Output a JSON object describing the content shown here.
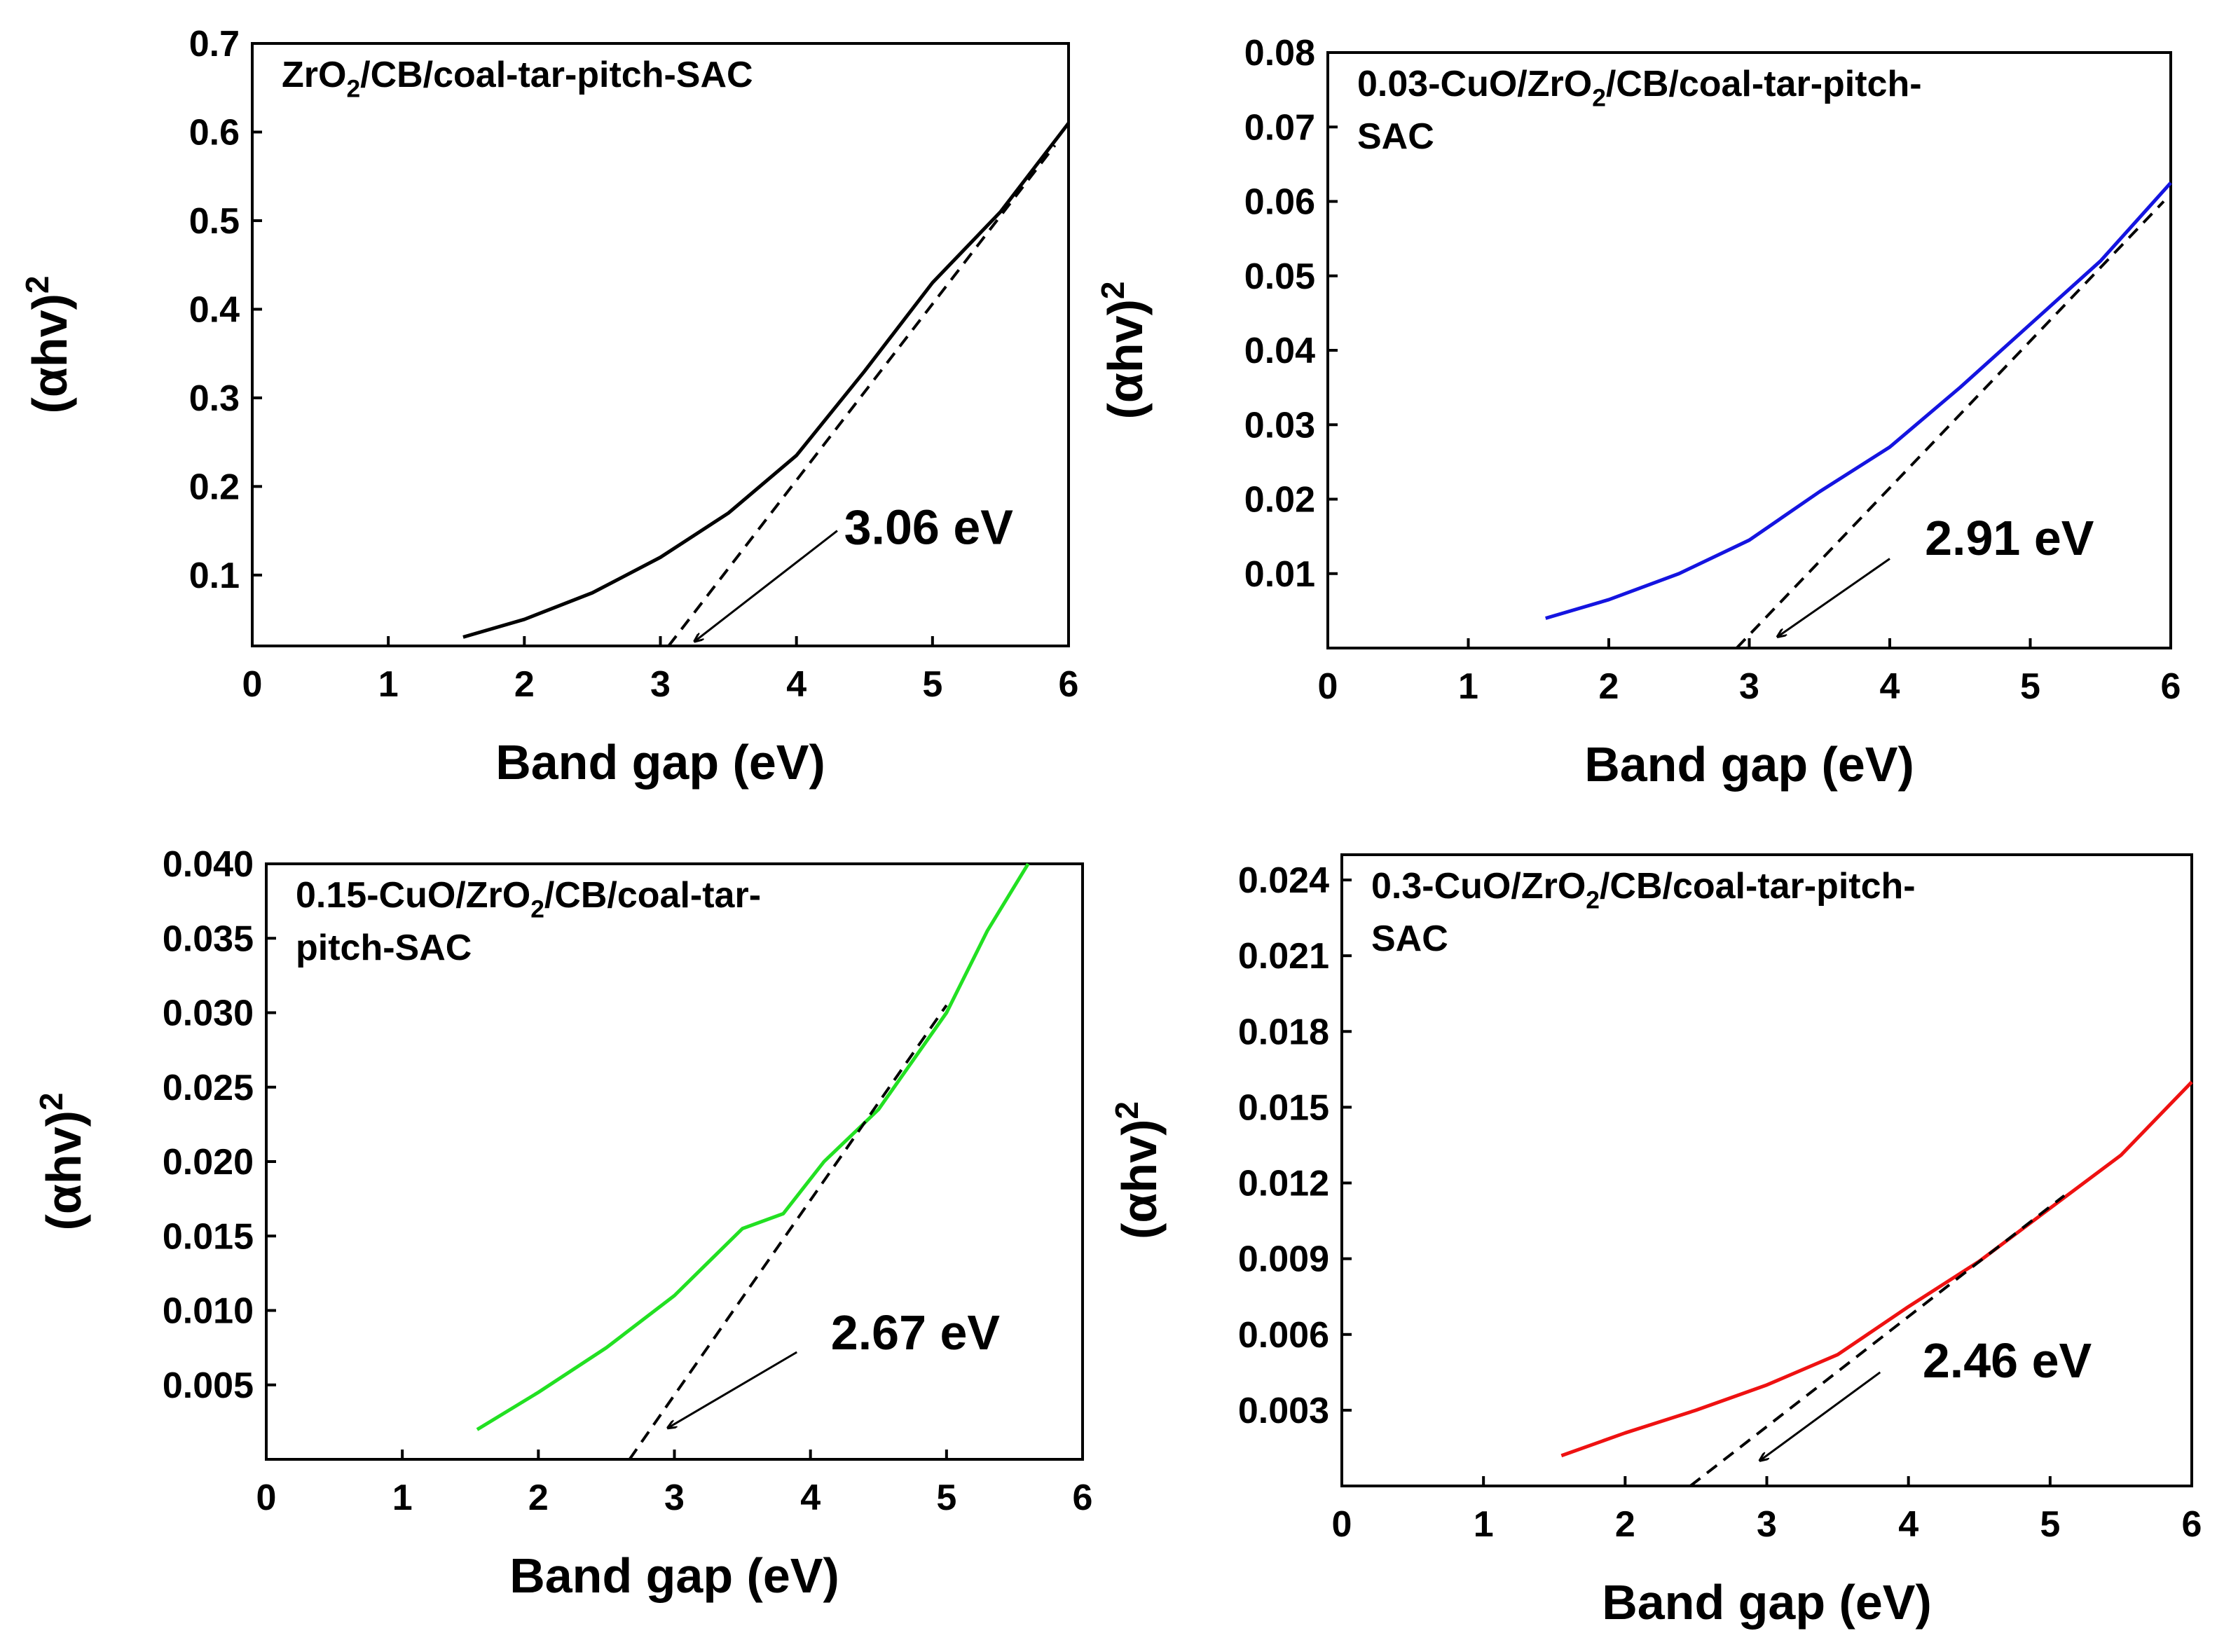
{
  "chart_data": [
    {
      "type": "line",
      "id": "zro2",
      "title": "ZrO2/CB/coal-tar-pitch-SAC",
      "title_parts": [
        {
          "t": "ZrO"
        },
        {
          "t": "2",
          "sub": true
        },
        {
          "t": "/CB/coal-tar-pitch-SAC"
        }
      ],
      "xlabel": "Band gap (eV)",
      "ylabel": "(αhv)",
      "ylabel_sup": "2",
      "xlim": [
        0,
        6
      ],
      "ylim": [
        0.02,
        0.7
      ],
      "xticks": [
        "0",
        "1",
        "2",
        "3",
        "4",
        "5",
        "6"
      ],
      "yticks": [
        "0.1",
        "0.2",
        "0.3",
        "0.4",
        "0.5",
        "0.6",
        "0.7"
      ],
      "series": [
        {
          "name": "ZrO2/CB/coal-tar-pitch-SAC",
          "color": "#000000",
          "x": [
            1.55,
            2.0,
            2.5,
            3.0,
            3.5,
            4.0,
            4.5,
            5.0,
            5.5,
            6.0
          ],
          "y": [
            0.03,
            0.05,
            0.08,
            0.12,
            0.17,
            0.235,
            0.33,
            0.43,
            0.51,
            0.61
          ]
        }
      ],
      "fit_line": {
        "x": [
          3.06,
          5.9
        ],
        "y": [
          0.02,
          0.585
        ]
      },
      "band_gap_label": "3.06 eV",
      "arrow": {
        "from": [
          4.3,
          0.15
        ],
        "to": [
          3.25,
          0.025
        ]
      },
      "label_pos": {
        "x": 4.35,
        "y": 0.135
      }
    },
    {
      "type": "line",
      "id": "cuo003",
      "title": "0.03-CuO/ZrO2/CB/coal-tar-pitch-SAC",
      "title_lines": [
        [
          {
            "t": "0.03-CuO/ZrO"
          },
          {
            "t": "2",
            "sub": true
          },
          {
            "t": "/CB/coal-tar-pitch-"
          }
        ],
        [
          {
            "t": "SAC"
          }
        ]
      ],
      "xlabel": "Band gap (eV)",
      "ylabel": "(αhv)",
      "ylabel_sup": "2",
      "xlim": [
        0,
        6
      ],
      "ylim": [
        0,
        0.08
      ],
      "xticks": [
        "0",
        "1",
        "2",
        "3",
        "4",
        "5",
        "6"
      ],
      "yticks": [
        "0.01",
        "0.02",
        "0.03",
        "0.04",
        "0.05",
        "0.06",
        "0.07",
        "0.08"
      ],
      "series": [
        {
          "name": "0.03-CuO/ZrO2/CB/coal-tar-pitch-SAC",
          "color": "#1414e0",
          "x": [
            1.55,
            2.0,
            2.5,
            3.0,
            3.5,
            4.0,
            4.5,
            5.0,
            5.5,
            6.0
          ],
          "y": [
            0.004,
            0.0065,
            0.01,
            0.0145,
            0.021,
            0.027,
            0.035,
            0.0435,
            0.052,
            0.0625
          ]
        }
      ],
      "fit_line": {
        "x": [
          2.91,
          5.95
        ],
        "y": [
          0.0,
          0.06
        ]
      },
      "band_gap_label": "2.91 eV",
      "arrow": {
        "from": [
          4.0,
          0.012
        ],
        "to": [
          3.2,
          0.0015
        ]
      },
      "label_pos": {
        "x": 4.25,
        "y": 0.0125
      }
    },
    {
      "type": "line",
      "id": "cuo015",
      "title": "0.15-CuO/ZrO2/CB/coal-tar-pitch-SAC",
      "title_lines": [
        [
          {
            "t": "0.15-CuO/ZrO"
          },
          {
            "t": "2",
            "sub": true
          },
          {
            "t": "/CB/coal-tar-"
          }
        ],
        [
          {
            "t": "pitch-SAC"
          }
        ]
      ],
      "xlabel": "Band gap (eV)",
      "ylabel": "(αhv)",
      "ylabel_sup": "2",
      "xlim": [
        0,
        6
      ],
      "ylim": [
        0,
        0.04
      ],
      "xticks": [
        "0",
        "1",
        "2",
        "3",
        "4",
        "5",
        "6"
      ],
      "yticks": [
        "0.005",
        "0.010",
        "0.015",
        "0.020",
        "0.025",
        "0.030",
        "0.035",
        "0.040"
      ],
      "series": [
        {
          "name": "0.15-CuO/ZrO2/CB/coal-tar-pitch-SAC",
          "color": "#22e022",
          "x": [
            1.55,
            2.0,
            2.5,
            3.0,
            3.5,
            3.8,
            4.1,
            4.5,
            5.0,
            5.3,
            5.6
          ],
          "y": [
            0.002,
            0.0045,
            0.0075,
            0.011,
            0.0155,
            0.0165,
            0.02,
            0.0235,
            0.03,
            0.0355,
            0.04
          ]
        }
      ],
      "fit_line": {
        "x": [
          2.67,
          5.0
        ],
        "y": [
          0.0,
          0.0305
        ]
      },
      "band_gap_label": "2.67 eV",
      "arrow": {
        "from": [
          3.9,
          0.0072
        ],
        "to": [
          2.95,
          0.0021
        ]
      },
      "label_pos": {
        "x": 4.15,
        "y": 0.0074
      }
    },
    {
      "type": "line",
      "id": "cuo03",
      "title": "0.3-CuO/ZrO2/CB/coal-tar-pitch-SAC",
      "title_lines": [
        [
          {
            "t": "0.3-CuO/ZrO"
          },
          {
            "t": "2",
            "sub": true
          },
          {
            "t": "/CB/coal-tar-pitch-"
          }
        ],
        [
          {
            "t": "SAC"
          }
        ]
      ],
      "xlabel": "Band gap (eV)",
      "ylabel": "(αhv)",
      "ylabel_sup": "2",
      "xlim": [
        0,
        6
      ],
      "ylim": [
        0,
        0.025
      ],
      "xticks": [
        "0",
        "1",
        "2",
        "3",
        "4",
        "5",
        "6"
      ],
      "yticks": [
        "0.003",
        "0.006",
        "0.009",
        "0.012",
        "0.015",
        "0.018",
        "0.021",
        "0.024"
      ],
      "series": [
        {
          "name": "0.3-CuO/ZrO2/CB/coal-tar-pitch-SAC",
          "color": "#ee1111",
          "x": [
            1.55,
            2.0,
            2.5,
            3.0,
            3.5,
            4.0,
            4.5,
            5.0,
            5.5,
            6.0
          ],
          "y": [
            0.0012,
            0.0021,
            0.003,
            0.004,
            0.0052,
            0.0071,
            0.0089,
            0.011,
            0.0131,
            0.016
          ]
        }
      ],
      "fit_line": {
        "x": [
          2.46,
          5.1
        ],
        "y": [
          0.0,
          0.0115
        ]
      },
      "band_gap_label": "2.46 eV",
      "arrow": {
        "from": [
          3.8,
          0.0045
        ],
        "to": [
          2.95,
          0.001
        ]
      },
      "label_pos": {
        "x": 4.1,
        "y": 0.0043
      }
    }
  ]
}
